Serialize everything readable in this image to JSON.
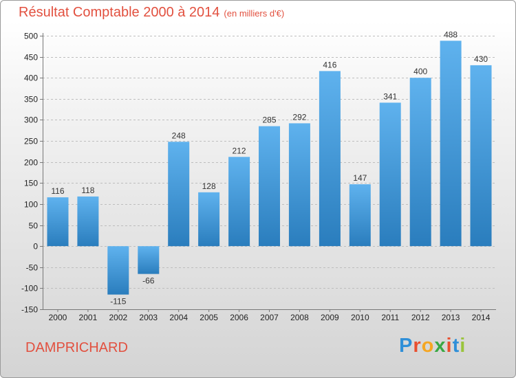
{
  "chart_data": {
    "type": "bar",
    "title": "Résultat Comptable 2000 à 2014",
    "subtitle": "(en milliers d'€)",
    "categories": [
      "2000",
      "2001",
      "2002",
      "2003",
      "2004",
      "2005",
      "2006",
      "2007",
      "2008",
      "2009",
      "2010",
      "2011",
      "2012",
      "2013",
      "2014"
    ],
    "values": [
      116,
      118,
      -115,
      -66,
      248,
      128,
      212,
      285,
      292,
      416,
      147,
      341,
      400,
      488,
      430
    ],
    "ylim": [
      -150,
      500
    ],
    "yticks": [
      -150,
      -100,
      -50,
      0,
      50,
      100,
      150,
      200,
      250,
      300,
      350,
      400,
      450,
      500
    ],
    "grid": true,
    "xlabel": "",
    "ylabel": ""
  },
  "commune": "DAMPRICHARD",
  "logo": {
    "letters": [
      "P",
      "r",
      "o",
      "x",
      "i",
      "t",
      "i"
    ],
    "colors": [
      "#2f8fd8",
      "#e94f2f",
      "#f5a623",
      "#3aa844",
      "#e94f2f",
      "#2f8fd8",
      "#9ac43c"
    ]
  },
  "colors": {
    "bar_light": "#5fb2ee",
    "bar_dark": "#2a7dbd",
    "title": "#e2503f"
  }
}
